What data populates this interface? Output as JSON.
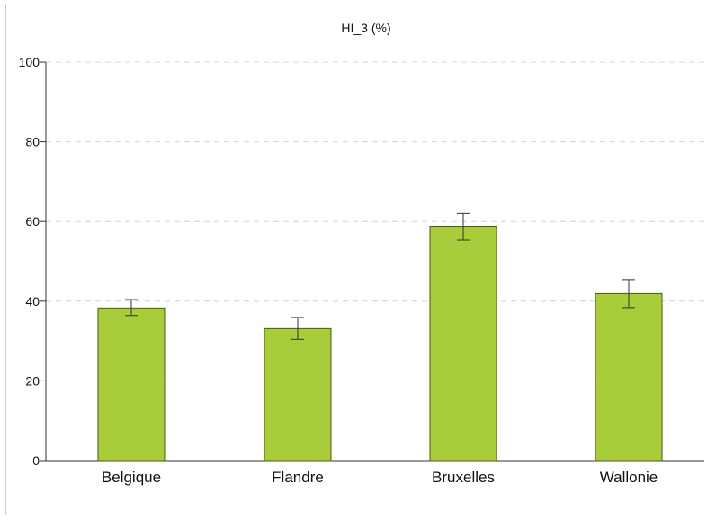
{
  "chart_data": {
    "type": "bar",
    "title": "HI_3 (%)",
    "categories": [
      "Belgique",
      "Flandre",
      "Bruxelles",
      "Wallonie"
    ],
    "values": [
      38.3,
      33.1,
      58.8,
      41.9
    ],
    "error_low": [
      36.4,
      30.4,
      55.3,
      38.4
    ],
    "error_high": [
      40.4,
      35.9,
      62.0,
      45.4
    ],
    "ylim": [
      0,
      100
    ],
    "yticks": [
      0,
      20,
      40,
      60,
      80,
      100
    ],
    "grid": true,
    "bar_color": "#a8cc3a",
    "bar_edge_color": "#4a5a12"
  }
}
